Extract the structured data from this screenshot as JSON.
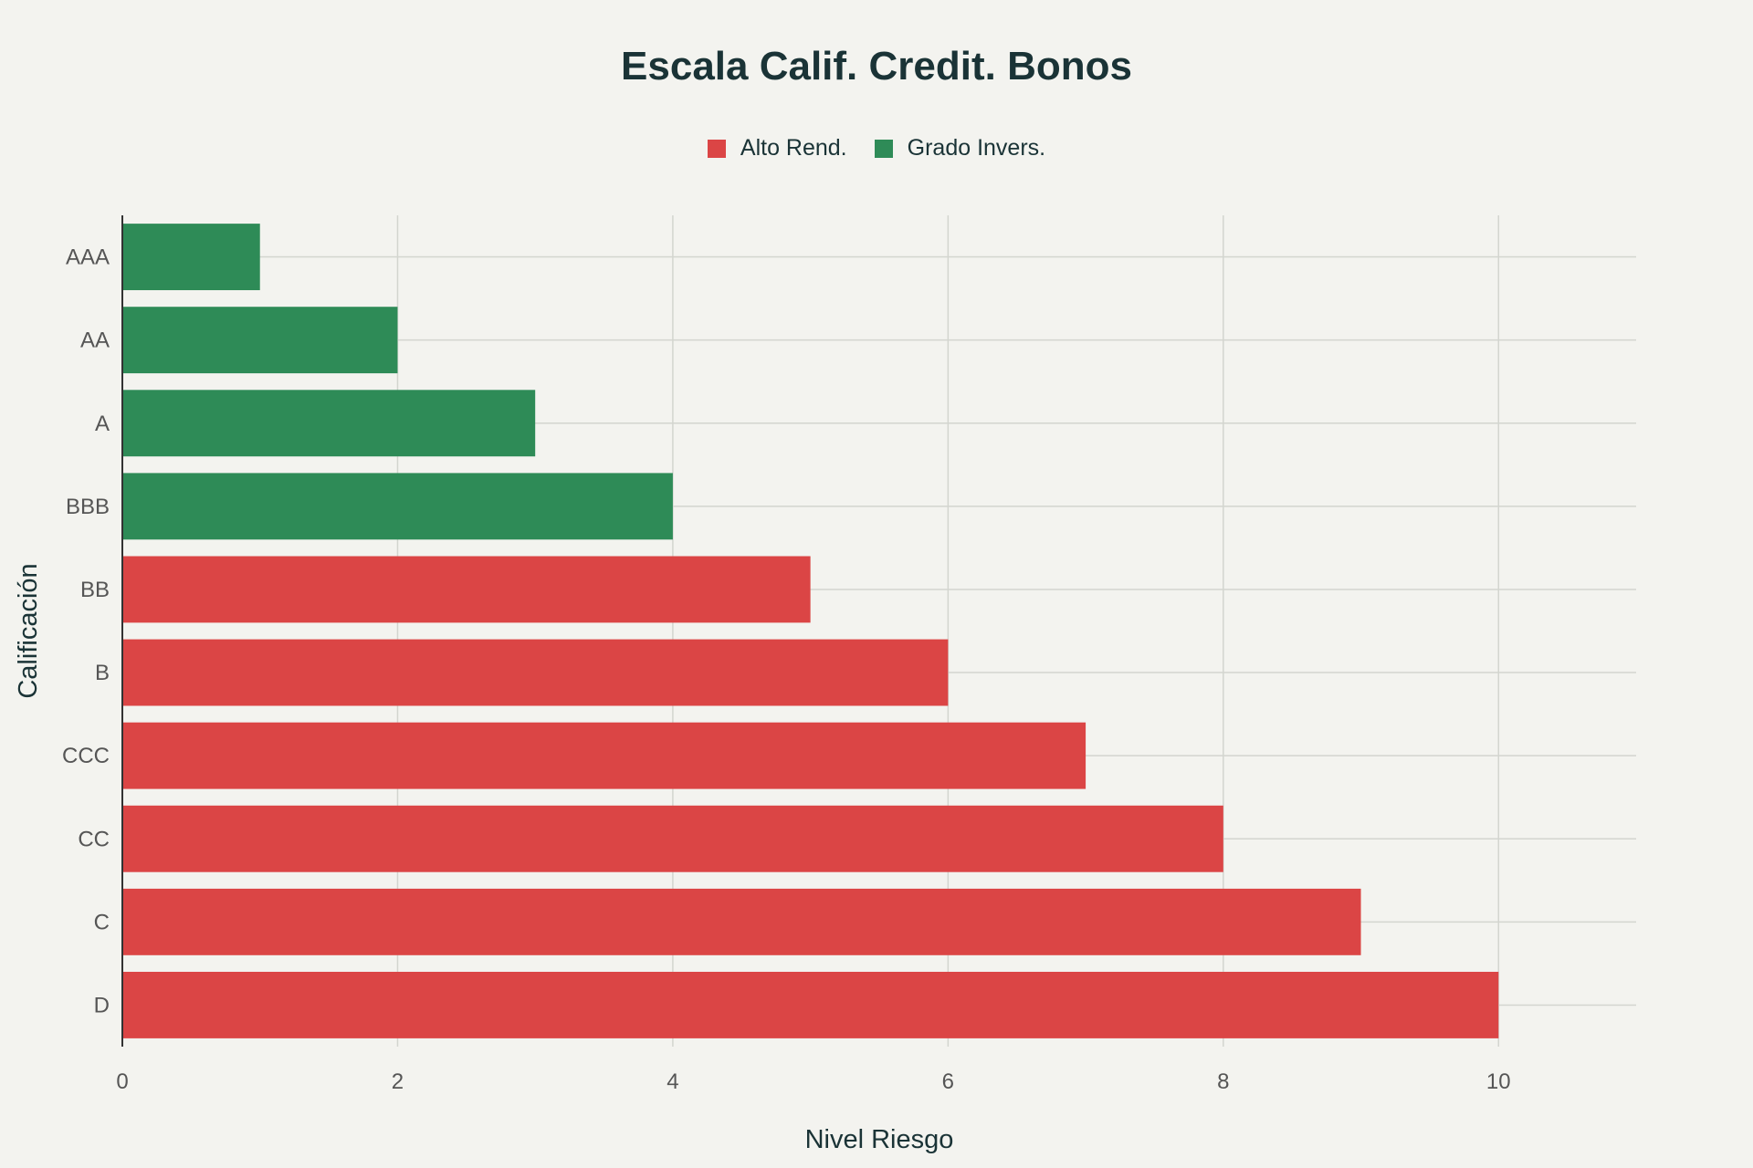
{
  "chart_data": {
    "type": "bar",
    "orientation": "horizontal",
    "title": "Escala Calif. Credit. Bonos",
    "xlabel": "Nivel Riesgo",
    "ylabel": "Calificación",
    "categories": [
      "AAA",
      "AA",
      "A",
      "BBB",
      "BB",
      "B",
      "CCC",
      "CC",
      "C",
      "D"
    ],
    "values": [
      1,
      2,
      3,
      4,
      5,
      6,
      7,
      8,
      9,
      10
    ],
    "groups": [
      "Grado Invers.",
      "Grado Invers.",
      "Grado Invers.",
      "Grado Invers.",
      "Alto Rend.",
      "Alto Rend.",
      "Alto Rend.",
      "Alto Rend.",
      "Alto Rend.",
      "Alto Rend."
    ],
    "legend": [
      {
        "name": "Alto Rend.",
        "color": "#db4545"
      },
      {
        "name": "Grado Invers.",
        "color": "#2e8b57"
      }
    ],
    "legend_position": "top-center",
    "xlim": [
      0,
      11
    ],
    "xticks": [
      0,
      2,
      4,
      6,
      8,
      10
    ],
    "grid": true,
    "colors": {
      "Alto Rend.": "#db4545",
      "Grado Invers.": "#2e8b57"
    }
  }
}
